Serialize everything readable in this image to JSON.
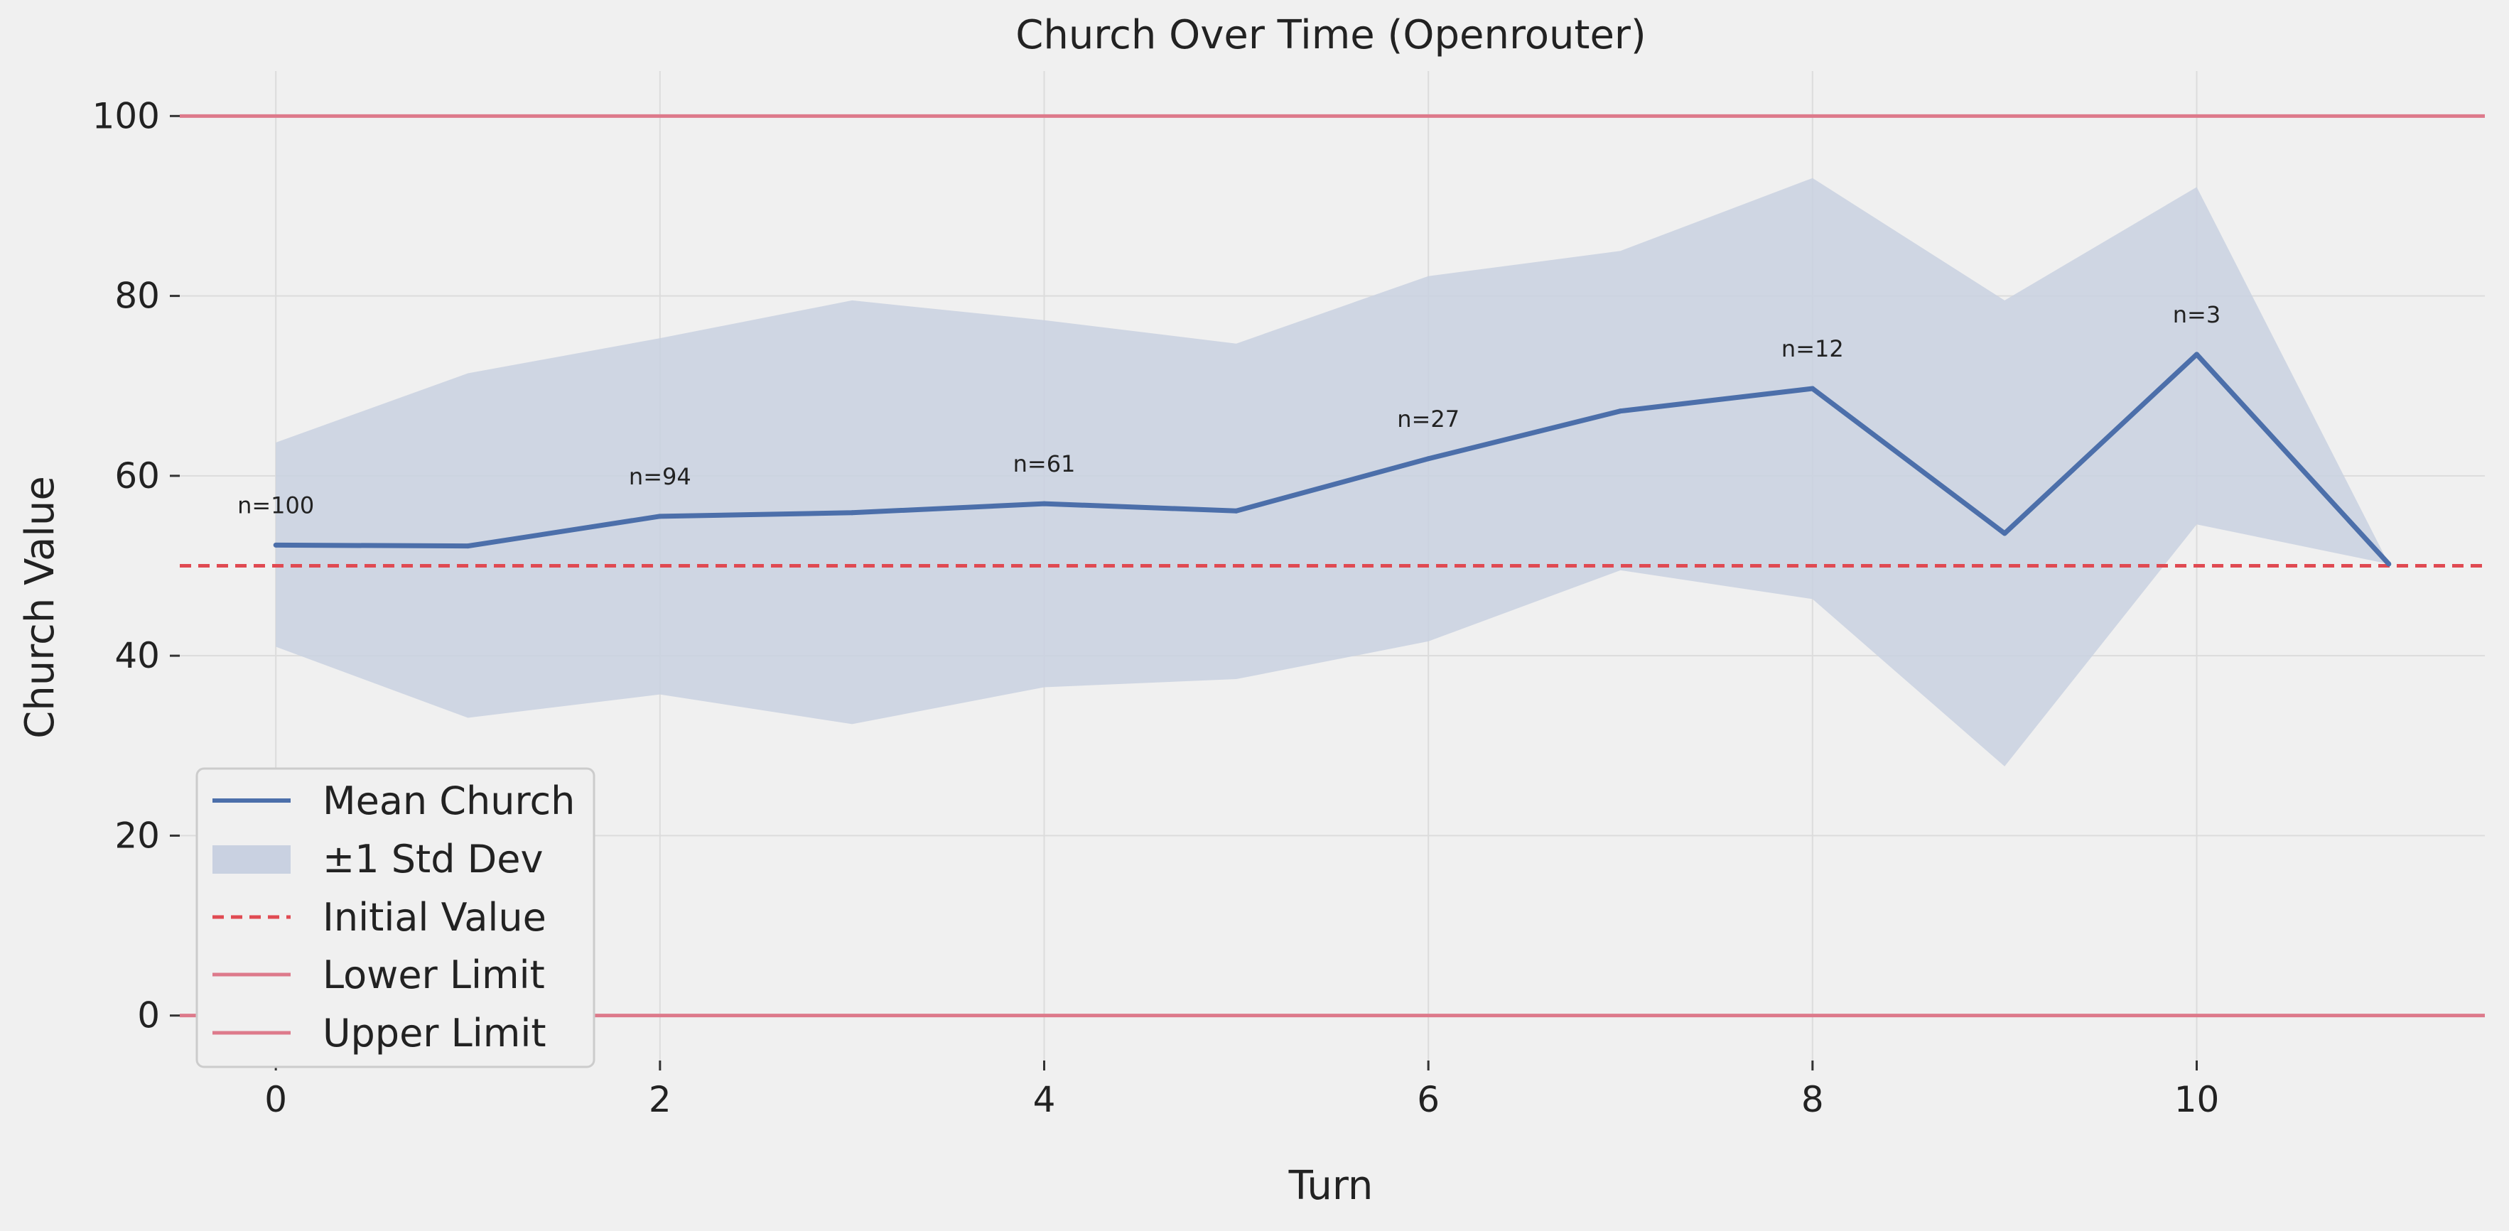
{
  "chart_data": {
    "type": "line",
    "title": "Church Over Time (Openrouter)",
    "xlabel": "Turn",
    "ylabel": "Church Value",
    "xlim": [
      -0.5,
      11.5
    ],
    "ylim": [
      -5,
      105
    ],
    "x_ticks": [
      0,
      2,
      4,
      6,
      8,
      10
    ],
    "y_ticks": [
      0,
      20,
      40,
      60,
      80,
      100
    ],
    "grid": true,
    "legend_position": "lower-left",
    "series": [
      {
        "name": "Mean Church",
        "color": "#4c6faa",
        "x": [
          0,
          1,
          2,
          3,
          4,
          5,
          6,
          7,
          8,
          9,
          10,
          11
        ],
        "values": [
          52.3,
          52.2,
          55.5,
          55.9,
          56.9,
          56.1,
          61.9,
          67.2,
          69.7,
          53.6,
          73.5,
          50.2
        ]
      }
    ],
    "band": {
      "name": "±1 Std Dev",
      "color": "#c9d1e1",
      "x": [
        0,
        1,
        2,
        3,
        4,
        5,
        6,
        7,
        8,
        9,
        10,
        11
      ],
      "upper": [
        63.7,
        71.4,
        75.3,
        79.5,
        77.3,
        74.7,
        82.2,
        85.0,
        93.1,
        79.5,
        92.1,
        50.2
      ],
      "lower": [
        41.0,
        33.1,
        35.7,
        32.4,
        36.5,
        37.4,
        41.6,
        49.5,
        46.3,
        27.7,
        54.6,
        50.2
      ]
    },
    "reference_lines": [
      {
        "name": "Initial Value",
        "y": 50,
        "color": "#e04a52",
        "style": "dashed"
      },
      {
        "name": "Lower Limit",
        "y": 0,
        "color": "#dd7a8b",
        "style": "solid"
      },
      {
        "name": "Upper Limit",
        "y": 100,
        "color": "#dd7a8b",
        "style": "solid"
      }
    ],
    "annotations": [
      {
        "x": 0,
        "y": 52.3,
        "text": "n=100"
      },
      {
        "x": 2,
        "y": 55.5,
        "text": "n=94"
      },
      {
        "x": 4,
        "y": 56.9,
        "text": "n=61"
      },
      {
        "x": 6,
        "y": 61.9,
        "text": "n=27"
      },
      {
        "x": 8,
        "y": 69.7,
        "text": "n=12"
      },
      {
        "x": 10,
        "y": 73.5,
        "text": "n=3"
      }
    ],
    "legend": [
      "Mean Church",
      "±1 Std Dev",
      "Initial Value",
      "Lower Limit",
      "Upper Limit"
    ]
  }
}
